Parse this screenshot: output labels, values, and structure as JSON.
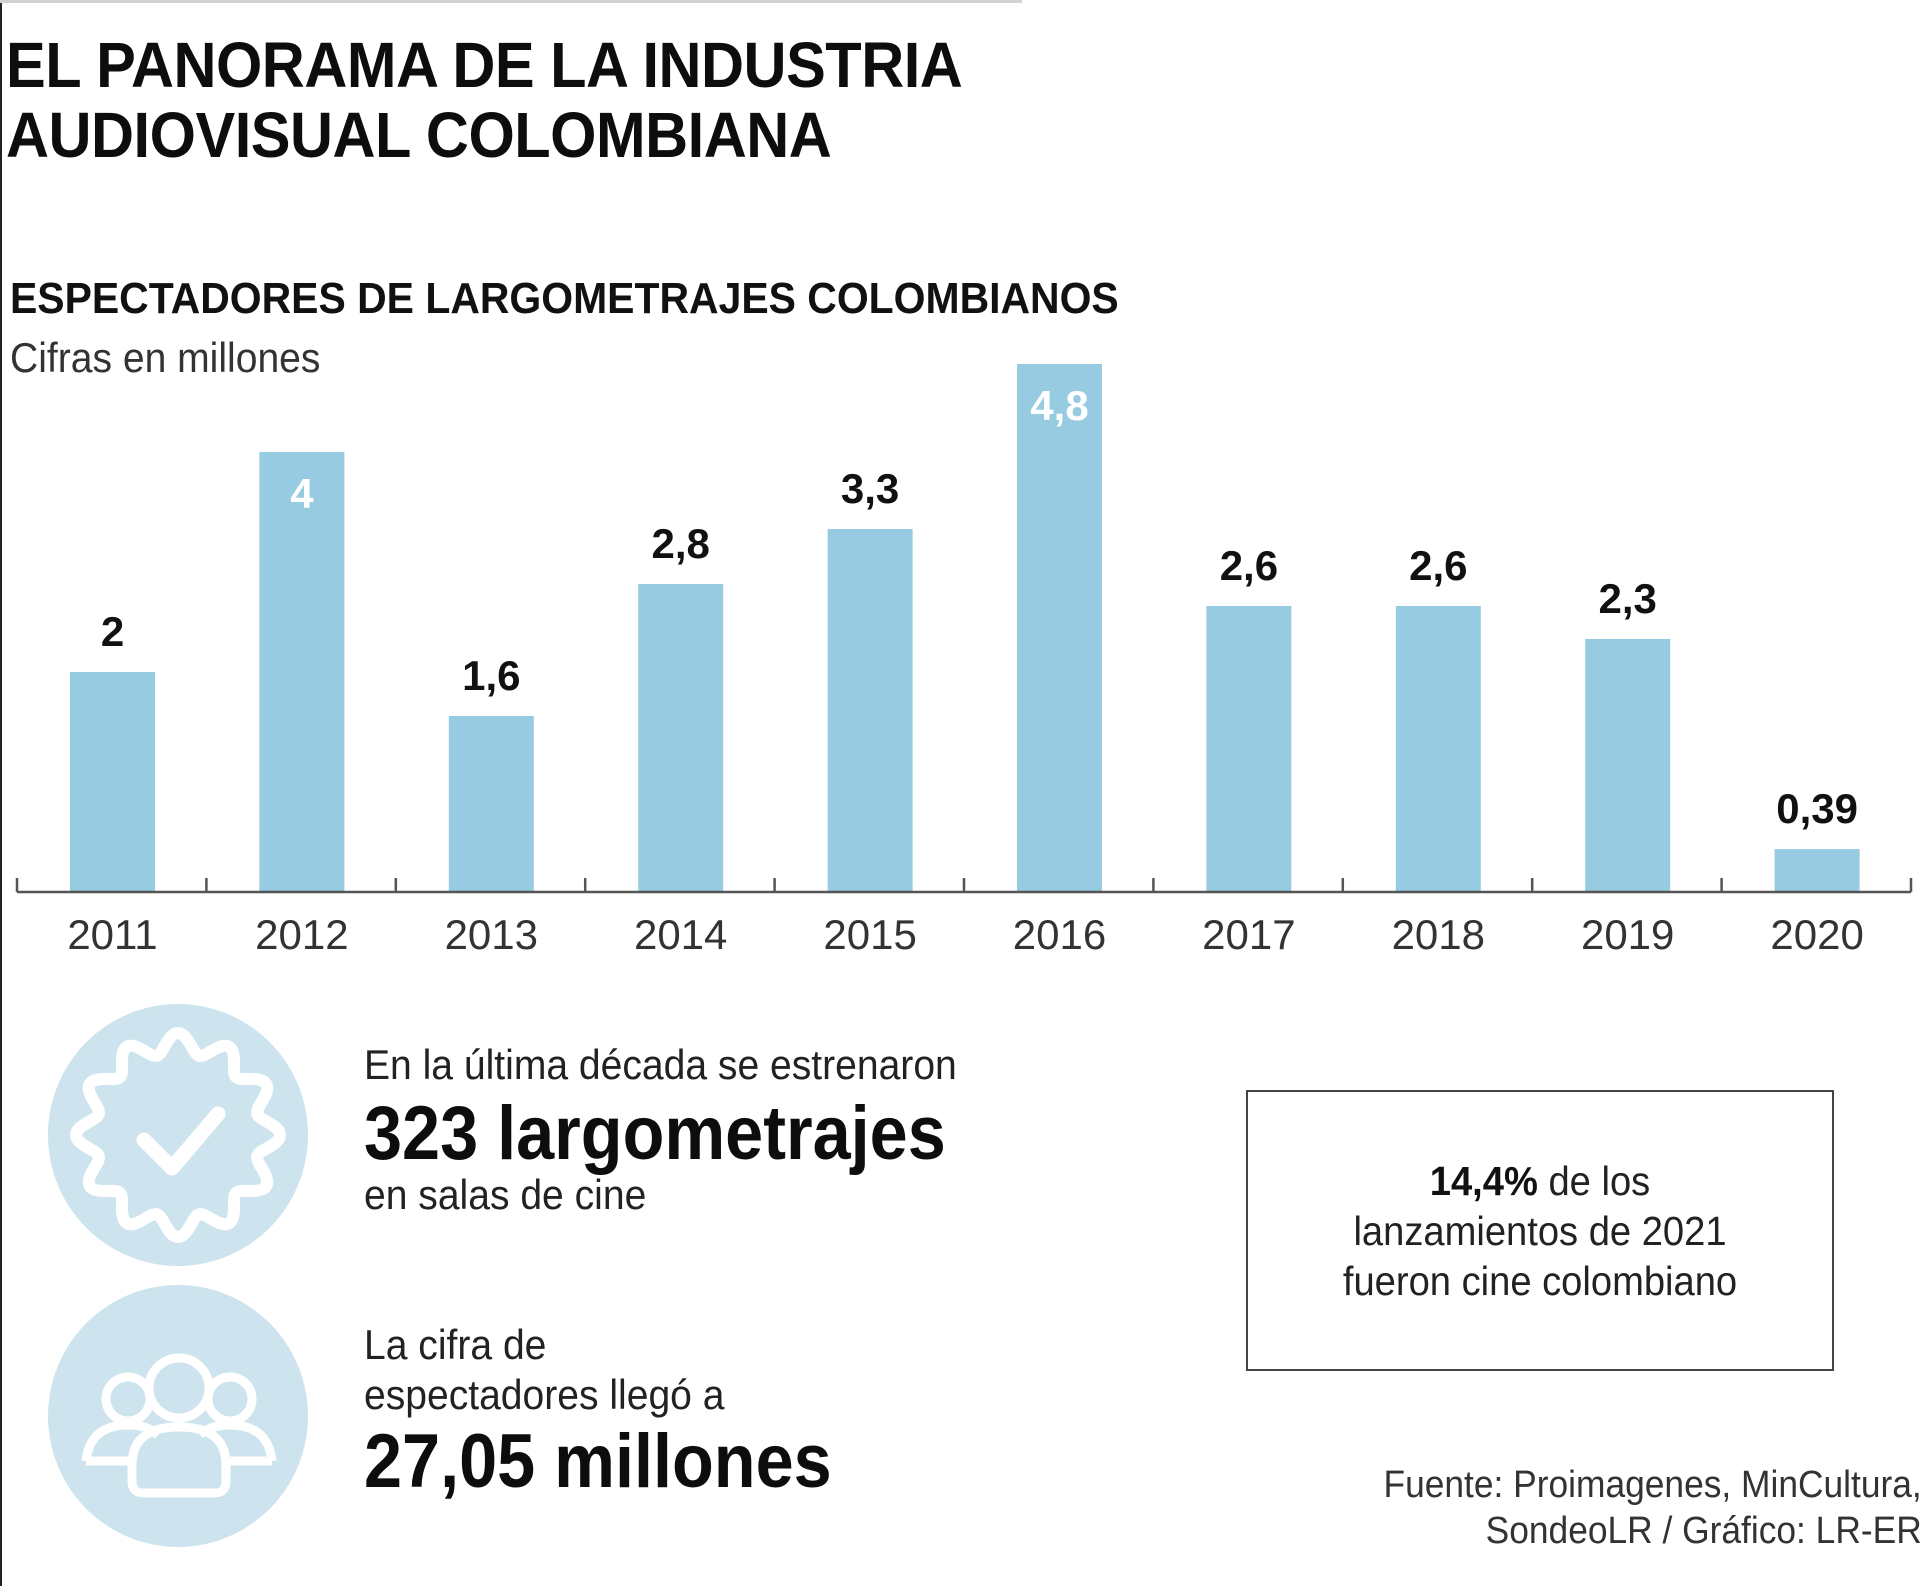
{
  "header": {
    "title_line1": "EL PANORAMA DE LA INDUSTRIA",
    "title_line2": "AUDIOVISUAL COLOMBIANA"
  },
  "chart_data": {
    "type": "bar",
    "title": "ESPECTADORES DE LARGOMETRAJES COLOMBIANOS",
    "subtitle": "Cifras en millones",
    "xlabel": "",
    "ylabel": "",
    "categories": [
      "2011",
      "2012",
      "2013",
      "2014",
      "2015",
      "2016",
      "2017",
      "2018",
      "2019",
      "2020"
    ],
    "values": [
      2,
      4,
      1.6,
      2.8,
      3.3,
      4.8,
      2.6,
      2.6,
      2.3,
      0.39
    ],
    "value_labels": [
      "2",
      "4",
      "1,6",
      "2,8",
      "3,3",
      "4,8",
      "2,6",
      "2,6",
      "2,3",
      "0,39"
    ],
    "labels_inside": [
      false,
      true,
      false,
      false,
      false,
      true,
      false,
      false,
      false,
      false
    ],
    "ylim": [
      0,
      5
    ],
    "grid": false,
    "legend": "none",
    "bar_color": "#97cbe1"
  },
  "stats": [
    {
      "icon": "badge-check-icon",
      "lead": "En la última década se estrenaron",
      "highlight": "323 largometrajes",
      "tail": "en salas de cine"
    },
    {
      "icon": "users-group-icon",
      "lead_line1": "La cifra de",
      "lead_line2": "espectadores llegó a",
      "highlight": "27,05 millones"
    }
  ],
  "note": {
    "highlight": "14,4%",
    "text_after": " de los lanzamientos de 2021 fueron cine colombiano"
  },
  "source": {
    "line1": "Fuente: Proimagenes, MinCultura,",
    "line2": "SondeoLR / Gráfico: LR-ER"
  },
  "colors": {
    "bar": "#97cbe1",
    "icon_circle": "#cde4ef",
    "text": "#111111"
  }
}
